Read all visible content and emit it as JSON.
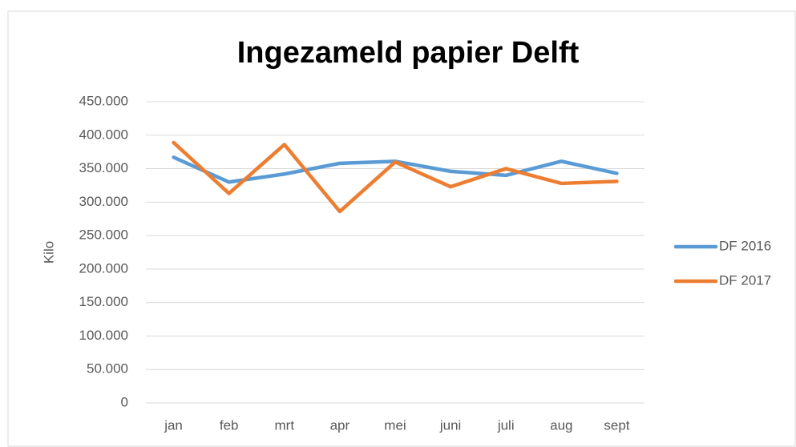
{
  "chart_data": {
    "type": "line",
    "title": "Ingezameld papier Delft",
    "y_label": "Kilo",
    "categories": [
      "jan",
      "feb",
      "mrt",
      "apr",
      "mei",
      "juni",
      "juli",
      "aug",
      "sept"
    ],
    "series": [
      {
        "name": "DF 2016",
        "color": "#5b9bd5",
        "values": [
          367000,
          330000,
          342000,
          358000,
          361000,
          346000,
          340000,
          361000,
          343000
        ]
      },
      {
        "name": "DF 2017",
        "color": "#ed7d31",
        "values": [
          389000,
          313000,
          386000,
          286000,
          360000,
          323000,
          350000,
          328000,
          331000
        ]
      }
    ],
    "ylim": [
      0,
      450000
    ],
    "yticks": [
      0,
      {
        "value": 50000,
        "label": "50.000"
      },
      {
        "value": 100000,
        "label": "100.000"
      },
      {
        "value": 150000,
        "label": "150.000"
      },
      {
        "value": 200000,
        "label": "200.000"
      },
      {
        "value": 250000,
        "label": "250.000"
      },
      {
        "value": 300000,
        "label": "300.000"
      },
      {
        "value": 350000,
        "label": "350.000"
      },
      {
        "value": 400000,
        "label": "400.000"
      },
      {
        "value": 450000,
        "label": "450.000"
      }
    ],
    "grid": true,
    "legend": "right"
  }
}
